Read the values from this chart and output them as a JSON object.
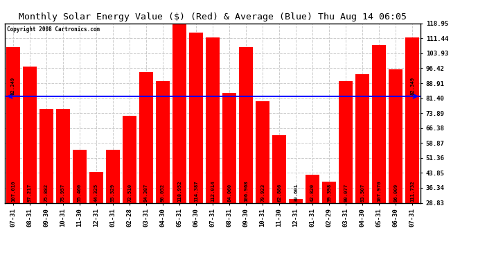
{
  "title": "Monthly Solar Energy Value ($) (Red) & Average (Blue) Thu Aug 14 06:05",
  "copyright": "Copyright 2008 Cartronics.com",
  "categories": [
    "07-31",
    "08-31",
    "09-30",
    "10-31",
    "11-30",
    "12-31",
    "01-31",
    "02-28",
    "03-31",
    "04-30",
    "05-31",
    "06-30",
    "07-31",
    "08-31",
    "09-30",
    "10-31",
    "11-30",
    "12-31",
    "01-31",
    "02-29",
    "03-31",
    "04-30",
    "05-31",
    "06-30",
    "07-31"
  ],
  "values": [
    107.01,
    97.217,
    75.882,
    75.957,
    55.46,
    44.325,
    55.529,
    72.51,
    94.387,
    90.052,
    118.952,
    114.387,
    112.014,
    84.06,
    106.968,
    79.923,
    62.886,
    30.601,
    42.82,
    39.398,
    90.077,
    93.507,
    107.97,
    96.009,
    111.732
  ],
  "average": 82.349,
  "ylim_min": 28.83,
  "ylim_max": 118.95,
  "yticks": [
    28.83,
    36.34,
    43.85,
    51.36,
    58.87,
    66.38,
    73.89,
    81.4,
    88.91,
    96.42,
    103.93,
    111.44,
    118.95
  ],
  "bar_color": "#ff0000",
  "avg_line_color": "#0000ff",
  "bg_color": "#ffffff",
  "plot_bg_color": "#ffffff",
  "grid_color": "#cccccc",
  "title_fontsize": 9.5,
  "tick_fontsize": 6.5,
  "value_fontsize": 5.2,
  "avg_label": "82.349"
}
